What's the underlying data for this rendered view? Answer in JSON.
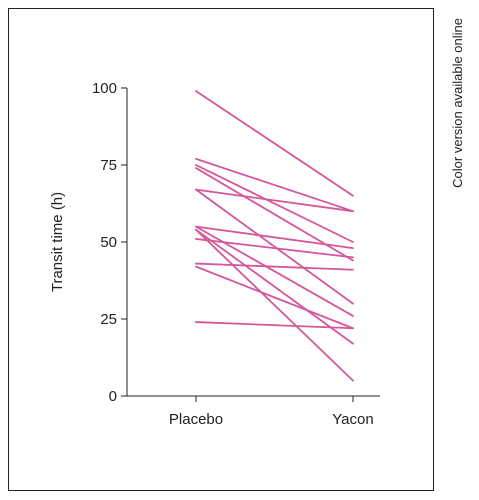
{
  "side_note": "Color version available online",
  "chart_data": {
    "type": "line",
    "categories": [
      "Placebo",
      "Yacon"
    ],
    "ylabel": "Transit time (h)",
    "xlabel": "",
    "ylim": [
      0,
      100
    ],
    "yticks": [
      0,
      25,
      50,
      75,
      100
    ],
    "grid": false,
    "line_color": "#d6569a",
    "series": [
      {
        "values": [
          99,
          65
        ]
      },
      {
        "values": [
          77,
          60
        ]
      },
      {
        "values": [
          75,
          50
        ]
      },
      {
        "values": [
          74,
          44
        ]
      },
      {
        "values": [
          67,
          60
        ]
      },
      {
        "values": [
          67,
          30
        ]
      },
      {
        "values": [
          55,
          48
        ]
      },
      {
        "values": [
          55,
          26
        ]
      },
      {
        "values": [
          54,
          17
        ]
      },
      {
        "values": [
          54,
          5
        ]
      },
      {
        "values": [
          51,
          45
        ]
      },
      {
        "values": [
          43,
          41
        ]
      },
      {
        "values": [
          42,
          22
        ]
      },
      {
        "values": [
          24,
          22
        ]
      }
    ]
  }
}
